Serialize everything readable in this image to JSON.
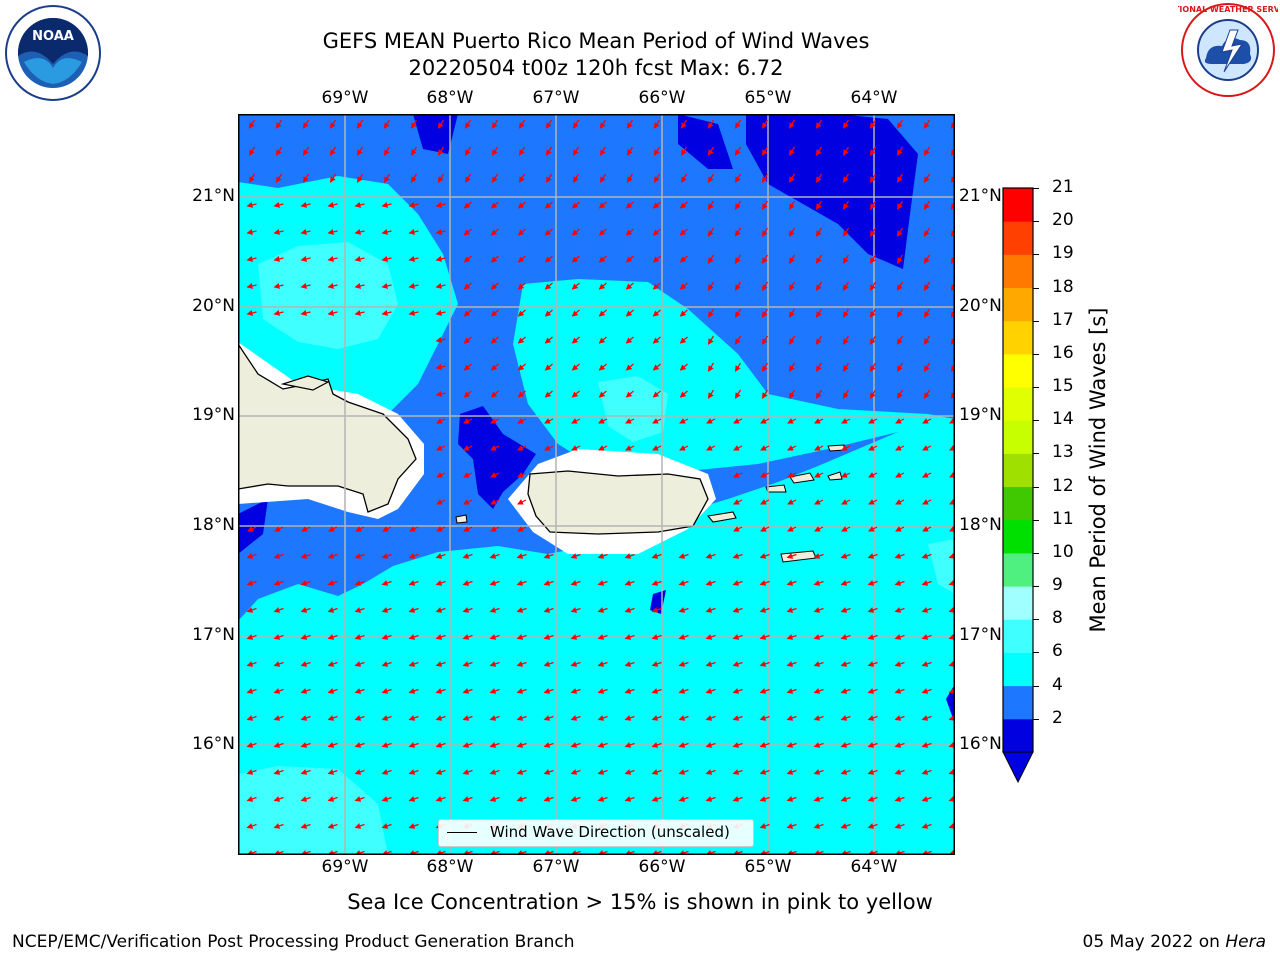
{
  "title": {
    "line1": "GEFS MEAN Puerto Rico Mean Period of Wind Waves",
    "line2": "20220504 t00z 120h fcst   Max: 6.72"
  },
  "axes": {
    "lon_labels": [
      "69°W",
      "68°W",
      "67°W",
      "66°W",
      "65°W",
      "64°W"
    ],
    "lat_labels": [
      "21°N",
      "20°N",
      "19°N",
      "18°N",
      "17°N",
      "16°N"
    ]
  },
  "colorbar": {
    "title": "Mean Period of Wind Waves [s]",
    "ticks": [
      "21",
      "20",
      "19",
      "18",
      "17",
      "16",
      "15",
      "14",
      "13",
      "12",
      "11",
      "10",
      "9",
      "8",
      "6",
      "4",
      "2"
    ],
    "level_colors": [
      "#0000e0",
      "#1e78ff",
      "#00ffff",
      "#40ffff",
      "#a0ffff",
      "#50f080",
      "#00e000",
      "#40c800",
      "#a0e000",
      "#c8ff00",
      "#e0ff00",
      "#ffff00",
      "#ffd200",
      "#ffa800",
      "#ff7800",
      "#ff4000",
      "#ff0000"
    ]
  },
  "legend": {
    "label": "Wind Wave Direction (unscaled)"
  },
  "note": "Sea Ice Concentration > 15% is shown in pink to yellow",
  "footer": {
    "left": "NCEP/EMC/Verification Post Processing Product Generation Branch",
    "date": "05 May 2022 on",
    "host": "Hera"
  },
  "logos": {
    "noaa": "NOAA",
    "nws": "NATIONAL WEATHER SERVICE"
  },
  "colors": {
    "land": "#eeeedc",
    "arrow": "#ff0000",
    "grid": "#b4b4b4"
  }
}
